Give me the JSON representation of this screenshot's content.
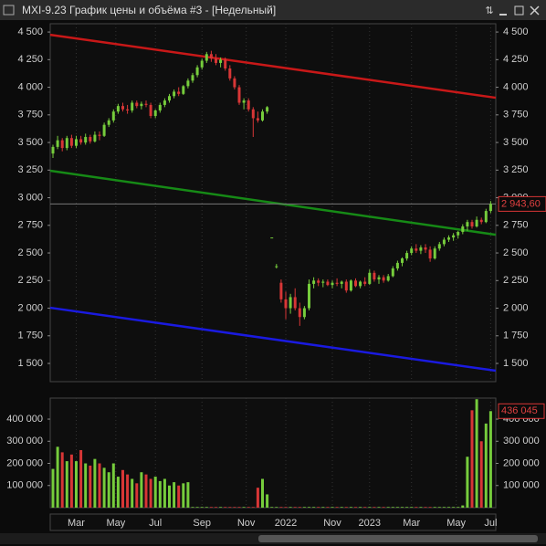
{
  "chart_data": {
    "type": "candlestick",
    "title": "MXI-9.23 График цены и объёма #3 - [Недельный]",
    "ylim": [
      1335,
      4575
    ],
    "yticks": [
      {
        "value": 4500,
        "label": "4 500"
      },
      {
        "value": 4250,
        "label": "4 250"
      },
      {
        "value": 4000,
        "label": "4 000"
      },
      {
        "value": 3750,
        "label": "3 750"
      },
      {
        "value": 3500,
        "label": "3 500"
      },
      {
        "value": 3250,
        "label": "3 250"
      },
      {
        "value": 3000,
        "label": "3 000"
      },
      {
        "value": 2750,
        "label": "2 750"
      },
      {
        "value": 2500,
        "label": "2 500"
      },
      {
        "value": 2250,
        "label": "2 250"
      },
      {
        "value": 2000,
        "label": "2 000"
      },
      {
        "value": 1750,
        "label": "1 750"
      },
      {
        "value": 1500,
        "label": "1 500"
      }
    ],
    "last_price": {
      "value": 2943.6,
      "label": "2 943,60"
    },
    "up_color": "#76cc3c",
    "down_color": "#d83636",
    "candles": [
      [
        3400,
        3480,
        3360,
        3460
      ],
      [
        3460,
        3560,
        3440,
        3520
      ],
      [
        3520,
        3540,
        3420,
        3450
      ],
      [
        3450,
        3560,
        3430,
        3540
      ],
      [
        3540,
        3570,
        3450,
        3470
      ],
      [
        3470,
        3560,
        3450,
        3530
      ],
      [
        3530,
        3560,
        3480,
        3500
      ],
      [
        3500,
        3580,
        3480,
        3550
      ],
      [
        3550,
        3570,
        3490,
        3510
      ],
      [
        3510,
        3600,
        3500,
        3570
      ],
      [
        3570,
        3600,
        3520,
        3560
      ],
      [
        3560,
        3680,
        3550,
        3660
      ],
      [
        3660,
        3720,
        3640,
        3700
      ],
      [
        3700,
        3800,
        3680,
        3780
      ],
      [
        3780,
        3850,
        3760,
        3830
      ],
      [
        3830,
        3860,
        3780,
        3800
      ],
      [
        3800,
        3840,
        3760,
        3790
      ],
      [
        3790,
        3880,
        3770,
        3860
      ],
      [
        3860,
        3880,
        3810,
        3830
      ],
      [
        3830,
        3870,
        3800,
        3850
      ],
      [
        3850,
        3880,
        3820,
        3840
      ],
      [
        3840,
        3860,
        3720,
        3740
      ],
      [
        3740,
        3800,
        3720,
        3790
      ],
      [
        3790,
        3860,
        3770,
        3840
      ],
      [
        3840,
        3900,
        3820,
        3880
      ],
      [
        3880,
        3940,
        3860,
        3920
      ],
      [
        3920,
        3980,
        3900,
        3960
      ],
      [
        3960,
        4000,
        3920,
        3940
      ],
      [
        3940,
        4020,
        3930,
        4010
      ],
      [
        4010,
        4080,
        3990,
        4060
      ],
      [
        4060,
        4130,
        4040,
        4110
      ],
      [
        4110,
        4200,
        4090,
        4180
      ],
      [
        4180,
        4260,
        4160,
        4240
      ],
      [
        4240,
        4320,
        4220,
        4300
      ],
      [
        4300,
        4330,
        4230,
        4260
      ],
      [
        4260,
        4300,
        4200,
        4220
      ],
      [
        4220,
        4270,
        4180,
        4250
      ],
      [
        4250,
        4270,
        4150,
        4170
      ],
      [
        4170,
        4200,
        4060,
        4080
      ],
      [
        4080,
        4100,
        3980,
        4000
      ],
      [
        4000,
        4020,
        3840,
        3860
      ],
      [
        3860,
        3900,
        3800,
        3880
      ],
      [
        3880,
        3900,
        3780,
        3800
      ],
      [
        3800,
        3820,
        3550,
        3720
      ],
      [
        3720,
        3780,
        3680,
        3700
      ],
      [
        3700,
        3800,
        3690,
        3780
      ],
      [
        3780,
        3830,
        3760,
        3820
      ],
      [
        2640,
        2640,
        2640,
        2640
      ],
      [
        2380,
        2400,
        2360,
        2380
      ],
      [
        2230,
        2260,
        2050,
        2080
      ],
      [
        2080,
        2150,
        1900,
        2000
      ],
      [
        2000,
        2130,
        1950,
        2100
      ],
      [
        2100,
        2180,
        1980,
        2000
      ],
      [
        2000,
        2050,
        1840,
        1920
      ],
      [
        1920,
        2020,
        1900,
        2000
      ],
      [
        2000,
        2260,
        1980,
        2220
      ],
      [
        2220,
        2280,
        2180,
        2250
      ],
      [
        2250,
        2270,
        2200,
        2230
      ],
      [
        2230,
        2260,
        2190,
        2240
      ],
      [
        2240,
        2260,
        2200,
        2210
      ],
      [
        2210,
        2250,
        2180,
        2230
      ],
      [
        2230,
        2270,
        2200,
        2220
      ],
      [
        2220,
        2250,
        2180,
        2240
      ],
      [
        2240,
        2260,
        2140,
        2160
      ],
      [
        2160,
        2260,
        2150,
        2250
      ],
      [
        2250,
        2270,
        2190,
        2200
      ],
      [
        2200,
        2250,
        2180,
        2240
      ],
      [
        2240,
        2280,
        2200,
        2220
      ],
      [
        2220,
        2350,
        2210,
        2320
      ],
      [
        2320,
        2340,
        2240,
        2260
      ],
      [
        2260,
        2300,
        2220,
        2280
      ],
      [
        2280,
        2300,
        2230,
        2250
      ],
      [
        2250,
        2310,
        2240,
        2290
      ],
      [
        2290,
        2380,
        2280,
        2360
      ],
      [
        2360,
        2430,
        2340,
        2410
      ],
      [
        2410,
        2460,
        2380,
        2450
      ],
      [
        2450,
        2520,
        2430,
        2500
      ],
      [
        2500,
        2560,
        2480,
        2540
      ],
      [
        2540,
        2580,
        2500,
        2520
      ],
      [
        2520,
        2570,
        2490,
        2550
      ],
      [
        2550,
        2580,
        2500,
        2530
      ],
      [
        2530,
        2560,
        2420,
        2450
      ],
      [
        2450,
        2560,
        2440,
        2540
      ],
      [
        2540,
        2600,
        2520,
        2580
      ],
      [
        2580,
        2640,
        2560,
        2620
      ],
      [
        2620,
        2660,
        2600,
        2640
      ],
      [
        2640,
        2680,
        2610,
        2660
      ],
      [
        2660,
        2700,
        2630,
        2690
      ],
      [
        2690,
        2760,
        2670,
        2740
      ],
      [
        2740,
        2800,
        2700,
        2780
      ],
      [
        2780,
        2800,
        2720,
        2740
      ],
      [
        2740,
        2830,
        2730,
        2800
      ],
      [
        2800,
        2820,
        2760,
        2780
      ],
      [
        2780,
        2900,
        2770,
        2880
      ],
      [
        2880,
        2970,
        2860,
        2943.6
      ]
    ],
    "volume": [
      175000,
      275000,
      250000,
      210000,
      240000,
      210000,
      260000,
      200000,
      190000,
      220000,
      200000,
      180000,
      160000,
      200000,
      140000,
      170000,
      150000,
      130000,
      110000,
      160000,
      150000,
      130000,
      140000,
      120000,
      130000,
      100000,
      115000,
      100000,
      110000,
      115000,
      3000,
      3000,
      3000,
      3000,
      3000,
      3000,
      3000,
      3000,
      3000,
      3000,
      3000,
      3000,
      3000,
      3000,
      90000,
      130000,
      60000,
      3000,
      3000,
      3000,
      3000,
      3000,
      3000,
      3000,
      3000,
      3000,
      3000,
      3000,
      3000,
      3000,
      3000,
      3000,
      3000,
      3000,
      3000,
      3000,
      3000,
      3000,
      3000,
      3000,
      3000,
      3000,
      3000,
      3000,
      3000,
      3000,
      3000,
      3000,
      3000,
      3000,
      3000,
      3000,
      3000,
      3000,
      3000,
      3000,
      3000,
      3000,
      10000,
      230000,
      440000,
      490000,
      300000,
      380000,
      436045
    ],
    "vlim": [
      0,
      495000
    ],
    "vticks": [
      {
        "value": 400000,
        "label": "400 000"
      },
      {
        "value": 300000,
        "label": "300 000"
      },
      {
        "value": 200000,
        "label": "200 000"
      },
      {
        "value": 100000,
        "label": "100 000"
      }
    ],
    "last_volume": {
      "value": 436045,
      "label": "436 045"
    },
    "trendlines": [
      {
        "color": "#c81818",
        "values": [
          4475,
          3905
        ]
      },
      {
        "color": "#168a16",
        "values": [
          3244,
          2665
        ]
      },
      {
        "color": "#1a1ae0",
        "values": [
          2004,
          1434
        ]
      }
    ],
    "x_labels": [
      {
        "label": "Mar",
        "index": 5
      },
      {
        "label": "May",
        "index": 13.5
      },
      {
        "label": "Jul",
        "index": 22
      },
      {
        "label": "Sep",
        "index": 32
      },
      {
        "label": "Nov",
        "index": 41.5
      },
      {
        "label": "2022",
        "index": 50
      },
      {
        "label": "Nov",
        "index": 60
      },
      {
        "label": "2023",
        "index": 68
      },
      {
        "label": "Mar",
        "index": 77
      },
      {
        "label": "May",
        "index": 86.6
      },
      {
        "label": "Jul",
        "index": 94
      }
    ]
  }
}
